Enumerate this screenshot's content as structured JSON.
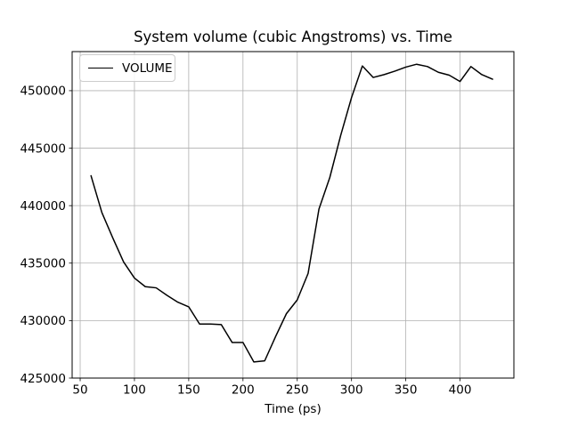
{
  "chart_data": {
    "type": "line",
    "title": "System volume (cubic Angstroms) vs. Time",
    "xlabel": "Time (ps)",
    "ylabel": "",
    "legend": "VOLUME",
    "legend_position": "upper left",
    "grid": true,
    "line_color": "#000000",
    "grid_color": "#b0b0b0",
    "axis_color": "#000000",
    "background_color": "#ffffff",
    "xlim": [
      42.6,
      449.6
    ],
    "ylim": [
      425000,
      453400
    ],
    "x_ticks": [
      50,
      100,
      150,
      200,
      250,
      300,
      350,
      400
    ],
    "y_ticks": [
      425000,
      430000,
      435000,
      440000,
      445000,
      450000
    ],
    "series": [
      {
        "name": "VOLUME",
        "x": [
          60,
          70,
          80,
          90,
          100,
          110,
          120,
          130,
          140,
          150,
          160,
          170,
          180,
          190,
          200,
          210,
          220,
          230,
          240,
          250,
          260,
          270,
          280,
          290,
          300,
          310,
          320,
          330,
          340,
          350,
          360,
          370,
          380,
          390,
          400,
          410,
          420,
          430
        ],
        "y": [
          442600,
          439400,
          437200,
          435100,
          433700,
          432950,
          432850,
          432200,
          431600,
          431200,
          429700,
          429700,
          429650,
          428100,
          428100,
          426400,
          426500,
          428600,
          430600,
          431800,
          434100,
          439700,
          442450,
          446100,
          449400,
          452150,
          451150,
          451400,
          451700,
          452050,
          452300,
          452100,
          451600,
          451350,
          450800,
          452100,
          451400,
          451000
        ]
      }
    ]
  }
}
